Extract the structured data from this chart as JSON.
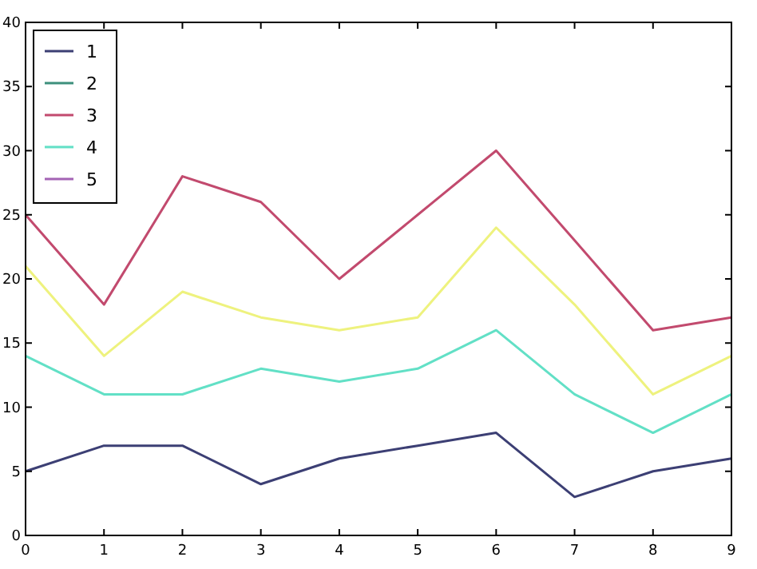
{
  "chart_data": {
    "type": "line",
    "x": [
      0,
      1,
      2,
      3,
      4,
      5,
      6,
      7,
      8,
      9
    ],
    "series": [
      {
        "name": "1",
        "color": "#3c3f74",
        "values": [
          5,
          7,
          7,
          4,
          6,
          7,
          8,
          3,
          5,
          6
        ]
      },
      {
        "name": "2",
        "color": "#3d8f7c",
        "values": [
          null,
          null,
          null,
          null,
          null,
          null,
          null,
          null,
          null,
          null
        ]
      },
      {
        "name": "3",
        "color": "#c24a6e",
        "values": [
          25,
          18,
          28,
          26,
          20,
          25,
          30,
          23,
          16,
          17
        ]
      },
      {
        "name": "4",
        "color": "#62e0c6",
        "values": [
          14,
          11,
          11,
          13,
          12,
          13,
          16,
          11,
          8,
          11
        ]
      },
      {
        "name": "5",
        "color": "#a463b4",
        "values": [
          null,
          null,
          null,
          null,
          null,
          null,
          null,
          null,
          null,
          null
        ]
      },
      {
        "color": "#eef27e",
        "values": [
          21,
          14,
          19,
          17,
          16,
          17,
          24,
          18,
          11,
          14
        ]
      }
    ],
    "xlim": [
      0,
      9
    ],
    "xticks": [
      0,
      1,
      2,
      3,
      4,
      5,
      6,
      7,
      8,
      9
    ],
    "ylim": [
      0,
      40
    ],
    "yticks": [
      0,
      5,
      10,
      15,
      20,
      25,
      30,
      35,
      40
    ],
    "legend": "top left",
    "grid": false
  }
}
